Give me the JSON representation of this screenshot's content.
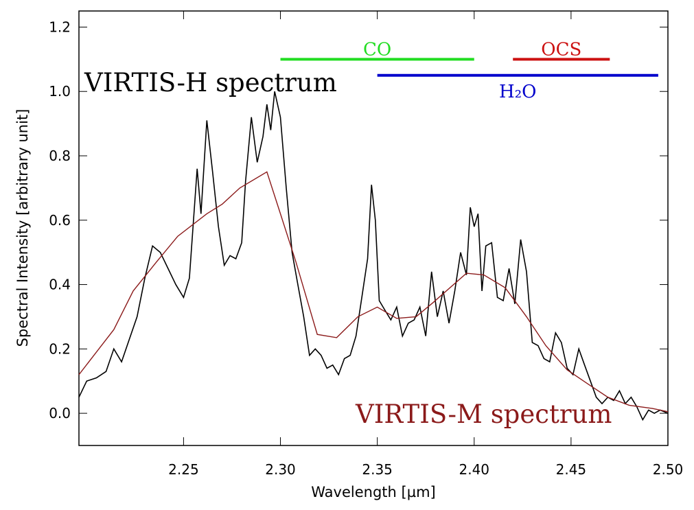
{
  "chart_data": {
    "type": "line",
    "xlabel": "Wavelength [µm]",
    "ylabel": "Spectral Intensity [arbitrary unit]",
    "xlim": [
      2.196,
      2.5
    ],
    "ylim": [
      -0.1,
      1.25
    ],
    "xticks": [
      2.25,
      {
        "value": 2.3,
        "label": "2.30"
      },
      2.35,
      {
        "value": 2.4,
        "label": "2.40"
      },
      2.45,
      {
        "value": 2.5,
        "label": "2.50"
      }
    ],
    "yticks": [
      {
        "value": 0,
        "label": "0.0"
      },
      0.2,
      0.4,
      0.6,
      0.8,
      {
        "value": 1,
        "label": "1.0"
      },
      1.2
    ],
    "series": [
      {
        "name": "VIRTIS-H spectrum",
        "color": "#000000",
        "x": [
          2.196,
          2.2,
          2.205,
          2.21,
          2.214,
          2.218,
          2.222,
          2.226,
          2.23,
          2.234,
          2.238,
          2.242,
          2.246,
          2.25,
          2.253,
          2.257,
          2.259,
          2.262,
          2.265,
          2.268,
          2.271,
          2.274,
          2.277,
          2.28,
          2.282,
          2.285,
          2.288,
          2.291,
          2.293,
          2.295,
          2.297,
          2.3,
          2.303,
          2.306,
          2.309,
          2.312,
          2.315,
          2.318,
          2.321,
          2.324,
          2.327,
          2.33,
          2.333,
          2.336,
          2.339,
          2.342,
          2.345,
          2.347,
          2.349,
          2.351,
          2.354,
          2.357,
          2.36,
          2.363,
          2.366,
          2.369,
          2.372,
          2.375,
          2.378,
          2.381,
          2.384,
          2.387,
          2.39,
          2.393,
          2.396,
          2.398,
          2.4,
          2.402,
          2.404,
          2.406,
          2.409,
          2.412,
          2.415,
          2.418,
          2.421,
          2.424,
          2.427,
          2.43,
          2.433,
          2.436,
          2.439,
          2.442,
          2.445,
          2.448,
          2.451,
          2.454,
          2.457,
          2.46,
          2.463,
          2.466,
          2.469,
          2.472,
          2.475,
          2.478,
          2.481,
          2.484,
          2.487,
          2.49,
          2.493,
          2.496,
          2.5
        ],
        "values": [
          0.05,
          0.1,
          0.11,
          0.13,
          0.2,
          0.16,
          0.23,
          0.3,
          0.42,
          0.52,
          0.5,
          0.45,
          0.4,
          0.36,
          0.42,
          0.76,
          0.62,
          0.91,
          0.75,
          0.58,
          0.46,
          0.49,
          0.48,
          0.53,
          0.72,
          0.92,
          0.78,
          0.86,
          0.96,
          0.88,
          1.0,
          0.92,
          0.7,
          0.5,
          0.4,
          0.3,
          0.18,
          0.2,
          0.18,
          0.14,
          0.15,
          0.12,
          0.17,
          0.18,
          0.24,
          0.36,
          0.48,
          0.71,
          0.6,
          0.35,
          0.32,
          0.29,
          0.33,
          0.24,
          0.28,
          0.29,
          0.33,
          0.24,
          0.44,
          0.3,
          0.38,
          0.28,
          0.38,
          0.5,
          0.43,
          0.64,
          0.58,
          0.62,
          0.38,
          0.52,
          0.53,
          0.36,
          0.35,
          0.45,
          0.34,
          0.54,
          0.44,
          0.22,
          0.21,
          0.17,
          0.16,
          0.25,
          0.22,
          0.14,
          0.12,
          0.2,
          0.15,
          0.1,
          0.05,
          0.03,
          0.05,
          0.04,
          0.07,
          0.03,
          0.05,
          0.02,
          -0.02,
          0.01,
          0.0,
          0.01,
          0.0
        ]
      },
      {
        "name": "VIRTIS-M spectrum",
        "color": "#8b1a1a",
        "x": [
          2.196,
          2.214,
          2.224,
          2.236,
          2.247,
          2.262,
          2.27,
          2.279,
          2.293,
          2.3,
          2.308,
          2.319,
          2.329,
          2.34,
          2.35,
          2.36,
          2.37,
          2.379,
          2.396,
          2.405,
          2.416,
          2.427,
          2.437,
          2.448,
          2.459,
          2.469,
          2.48,
          2.492,
          2.5
        ],
        "values": [
          0.12,
          0.26,
          0.38,
          0.47,
          0.55,
          0.62,
          0.65,
          0.7,
          0.75,
          0.62,
          0.47,
          0.245,
          0.235,
          0.3,
          0.33,
          0.295,
          0.3,
          0.345,
          0.435,
          0.43,
          0.39,
          0.3,
          0.21,
          0.135,
          0.09,
          0.05,
          0.025,
          0.015,
          0.005
        ]
      }
    ],
    "bands": [
      {
        "name": "CO",
        "color": "#22dd22",
        "x": [
          2.3,
          2.4
        ],
        "y": 1.1,
        "label_position": "above"
      },
      {
        "name": "OCS",
        "color": "#cc1111",
        "x": [
          2.42,
          2.47
        ],
        "y": 1.1,
        "label_position": "above"
      },
      {
        "name": "H₂O",
        "color": "#0000cc",
        "x": [
          2.35,
          2.495
        ],
        "y": 1.05,
        "label_position": "below"
      }
    ]
  }
}
